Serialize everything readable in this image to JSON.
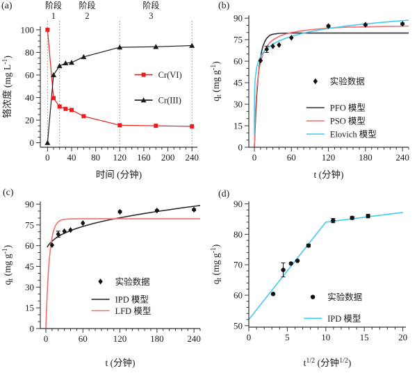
{
  "figure_title": "",
  "colors": {
    "red_bright": "#ed1c1c",
    "salmon": "#f36f6f",
    "cyan": "#41cbf2",
    "black_line": "#2b2b2b",
    "scatter_black": "#111111",
    "dotted_gray": "#808080",
    "text": "#1a1a1a"
  },
  "chart_data": [
    {
      "id": "a",
      "tag": "(a)",
      "type": "line",
      "xlabel_segments": [
        {
          "t": "时间 (分钟)"
        }
      ],
      "ylabel_segments": [
        {
          "t": "铬浓度  (mg L"
        },
        {
          "t": "-1",
          "sup": true
        },
        {
          "t": ")"
        }
      ],
      "xlim": [
        -12,
        249
      ],
      "ylim": [
        -4,
        103
      ],
      "xticks": [
        0,
        40,
        80,
        120,
        160,
        200,
        240
      ],
      "yticks": [
        0,
        20,
        40,
        60,
        80,
        100
      ],
      "x_minor": 10,
      "y_minor": 5,
      "vlines": {
        "x": [
          0,
          20,
          120,
          240
        ]
      },
      "stage_labels": {
        "word": "阶段",
        "items": [
          {
            "x": 10,
            "num": "1"
          },
          {
            "x": 66,
            "num": "2"
          },
          {
            "x": 172,
            "num": "3"
          }
        ]
      },
      "series": [
        {
          "key": "cr-vi",
          "name": "Cr(VI)",
          "kind": "line-marker",
          "marker": "square",
          "color": "#ed1c1c",
          "points": [
            [
              0,
              100
            ],
            [
              10,
              39.5
            ],
            [
              20,
              32
            ],
            [
              30,
              30
            ],
            [
              40,
              29
            ],
            [
              60,
              23.5
            ],
            [
              120,
              15.5
            ],
            [
              180,
              15
            ],
            [
              240,
              14.5
            ]
          ]
        },
        {
          "key": "cr-iii",
          "name": "Cr(III)",
          "kind": "line-marker",
          "marker": "triangle",
          "color": "#1a1a1a",
          "points": [
            [
              0,
              0
            ],
            [
              10,
              60
            ],
            [
              20,
              68
            ],
            [
              30,
              70.5
            ],
            [
              40,
              71
            ],
            [
              60,
              76
            ],
            [
              120,
              84.5
            ],
            [
              180,
              85
            ],
            [
              240,
              86
            ]
          ]
        }
      ],
      "legend": {
        "fx": 0.6,
        "line_len": 26,
        "entries": [
          {
            "fy": 0.4,
            "swatch": "line-marker",
            "marker": "square",
            "color": "#ed1c1c",
            "label": "Cr(VI)"
          },
          {
            "fy": 0.61,
            "swatch": "line-marker",
            "marker": "triangle",
            "color": "#1a1a1a",
            "label": "Cr(III)"
          }
        ]
      }
    },
    {
      "id": "b",
      "tag": "(b)",
      "type": "scatter+line",
      "xlabel_segments": [
        {
          "t": "t (分钟)"
        }
      ],
      "ylabel_segments": [
        {
          "t": "q"
        },
        {
          "t": "t",
          "sub": true
        },
        {
          "t": " (mg g"
        },
        {
          "t": "-1",
          "sup": true
        },
        {
          "t": ")"
        }
      ],
      "xlim": [
        -9,
        250
      ],
      "ylim": [
        0,
        92
      ],
      "xticks": [
        0,
        60,
        120,
        180,
        240
      ],
      "yticks": [
        0,
        15,
        30,
        45,
        60,
        75,
        90
      ],
      "x_minor": 10,
      "y_minor": 5,
      "series": [
        {
          "key": "pfo",
          "name": "PFO 模型",
          "kind": "line",
          "color": "#2b2b2b",
          "points": [
            [
              0,
              0
            ],
            [
              1,
              11.4
            ],
            [
              2,
              21.2
            ],
            [
              3,
              29.6
            ],
            [
              4,
              36.8
            ],
            [
              5,
              42.9
            ],
            [
              6,
              48.2
            ],
            [
              8,
              56.6
            ],
            [
              10,
              62.7
            ],
            [
              12,
              67.2
            ],
            [
              14,
              70.5
            ],
            [
              17,
              73.9
            ],
            [
              20,
              76.0
            ],
            [
              25,
              78.0
            ],
            [
              30,
              78.8
            ],
            [
              40,
              79.4
            ],
            [
              60,
              79.6
            ],
            [
              120,
              79.6
            ],
            [
              250,
              79.6
            ]
          ]
        },
        {
          "key": "pso",
          "name": "PSO 模型",
          "kind": "line",
          "color": "#f36f6f",
          "points": [
            [
              0,
              0
            ],
            [
              1,
              15.6
            ],
            [
              2,
              26.5
            ],
            [
              3,
              34.4
            ],
            [
              4,
              40.5
            ],
            [
              5,
              45.3
            ],
            [
              6,
              49.1
            ],
            [
              8,
              55.0
            ],
            [
              10,
              59.3
            ],
            [
              13,
              63.9
            ],
            [
              16,
              67.1
            ],
            [
              20,
              70.2
            ],
            [
              25,
              72.9
            ],
            [
              30,
              74.8
            ],
            [
              40,
              77.3
            ],
            [
              50,
              78.9
            ],
            [
              60,
              80.0
            ],
            [
              80,
              81.4
            ],
            [
              100,
              82.3
            ],
            [
              120,
              83.1
            ],
            [
              150,
              83.7
            ],
            [
              180,
              83.9
            ],
            [
              210,
              84.2
            ],
            [
              250,
              84.5
            ]
          ]
        },
        {
          "key": "elovich",
          "name": "Elovich 模型",
          "kind": "line",
          "color": "#41cbf2",
          "points": [
            [
              0.01,
              8.6
            ],
            [
              0.05,
              21.3
            ],
            [
              0.1,
              26.8
            ],
            [
              0.2,
              32.3
            ],
            [
              0.4,
              37.8
            ],
            [
              0.7,
              42.2
            ],
            [
              1,
              45
            ],
            [
              1.5,
              48.2
            ],
            [
              2,
              50.5
            ],
            [
              3,
              53.7
            ],
            [
              4,
              56.0
            ],
            [
              6,
              59.2
            ],
            [
              8,
              61.4
            ],
            [
              10,
              63.2
            ],
            [
              13,
              65.3
            ],
            [
              16,
              66.9
            ],
            [
              20,
              68.7
            ],
            [
              25,
              70.4
            ],
            [
              30,
              71.9
            ],
            [
              40,
              74.1
            ],
            [
              50,
              75.9
            ],
            [
              60,
              77.3
            ],
            [
              80,
              79.6
            ],
            [
              100,
              81.4
            ],
            [
              120,
              82.8
            ],
            [
              150,
              84.6
            ],
            [
              180,
              86.0
            ],
            [
              210,
              87.2
            ],
            [
              250,
              88.6
            ]
          ]
        },
        {
          "key": "exp-data",
          "name": "实验数据",
          "kind": "scatter",
          "marker": "diamond",
          "color": "#111111",
          "points": [
            [
              10,
              60.4
            ],
            [
              20,
              68.3
            ],
            [
              30,
              70.4
            ],
            [
              40,
              71.3
            ],
            [
              60,
              76.3
            ],
            [
              120,
              84.5
            ],
            [
              180,
              85.4
            ],
            [
              240,
              86.0
            ]
          ],
          "err": [
            0,
            2.2,
            0,
            0,
            0,
            0.7,
            0.6,
            0.7
          ]
        }
      ],
      "legend": {
        "fx": 0.36,
        "line_len": 26,
        "entries": [
          {
            "fy": 0.5,
            "swatch": "marker",
            "marker": "diamond",
            "color": "#111111",
            "label": "实验数据"
          },
          {
            "fy": 0.7,
            "swatch": "line",
            "color": "#2b2b2b",
            "label": "PFO 模型"
          },
          {
            "fy": 0.8,
            "swatch": "line",
            "color": "#f36f6f",
            "label": "PSO 模型"
          },
          {
            "fy": 0.9,
            "swatch": "line",
            "color": "#41cbf2",
            "label": "Elovich 模型"
          }
        ]
      }
    },
    {
      "id": "c",
      "tag": "(c)",
      "type": "scatter+line",
      "xlabel_segments": [
        {
          "t": "t (分钟)"
        }
      ],
      "ylabel_segments": [
        {
          "t": "q"
        },
        {
          "t": "t",
          "sub": true
        },
        {
          "t": " (mg g"
        },
        {
          "t": "-1",
          "sup": true
        },
        {
          "t": ")"
        }
      ],
      "xlim": [
        -9,
        250
      ],
      "ylim": [
        0,
        92
      ],
      "xticks": [
        0,
        60,
        120,
        180,
        240
      ],
      "yticks": [
        0,
        15,
        30,
        45,
        60,
        75,
        90
      ],
      "x_minor": 10,
      "y_minor": 5,
      "series": [
        {
          "key": "ipd",
          "name": "IPD 模型",
          "kind": "line",
          "color": "#2b2b2b",
          "points": [
            [
              2,
              58.8
            ],
            [
              4,
              60.3
            ],
            [
              6,
              61.4
            ],
            [
              8,
              62.4
            ],
            [
              10,
              63.3
            ],
            [
              15,
              65.1
            ],
            [
              20,
              66.6
            ],
            [
              25,
              67.9
            ],
            [
              30,
              69.0
            ],
            [
              40,
              70.9
            ],
            [
              50,
              72.5
            ],
            [
              60,
              73.9
            ],
            [
              75,
              75.8
            ],
            [
              90,
              77.4
            ],
            [
              105,
              78.9
            ],
            [
              120,
              80.2
            ],
            [
              140,
              81.8
            ],
            [
              160,
              83.3
            ],
            [
              180,
              84.7
            ],
            [
              200,
              86.0
            ],
            [
              220,
              87.3
            ],
            [
              240,
              88.5
            ],
            [
              250,
              89.1
            ]
          ]
        },
        {
          "key": "lfd",
          "name": "LFD 模型",
          "kind": "line",
          "color": "#f36f6f",
          "points": [
            [
              0,
              0
            ],
            [
              1,
              12.9
            ],
            [
              2,
              23.7
            ],
            [
              3,
              32.8
            ],
            [
              4,
              40.3
            ],
            [
              5,
              46.7
            ],
            [
              6,
              52.0
            ],
            [
              8,
              60.2
            ],
            [
              10,
              66.0
            ],
            [
              12,
              70.0
            ],
            [
              15,
              74.0
            ],
            [
              18,
              76.2
            ],
            [
              22,
              77.9
            ],
            [
              26,
              78.7
            ],
            [
              30,
              79.1
            ],
            [
              40,
              79.4
            ],
            [
              60,
              79.5
            ],
            [
              250,
              79.5
            ]
          ]
        },
        {
          "key": "exp-data",
          "name": "实验数据",
          "kind": "scatter",
          "marker": "diamond",
          "color": "#111111",
          "points": [
            [
              10,
              60.4
            ],
            [
              20,
              68.3
            ],
            [
              30,
              70.4
            ],
            [
              40,
              71.3
            ],
            [
              60,
              76.3
            ],
            [
              120,
              84.5
            ],
            [
              180,
              85.4
            ],
            [
              240,
              86.0
            ]
          ],
          "err": [
            0,
            2.2,
            0,
            0,
            0,
            0.7,
            0.6,
            0.7
          ]
        }
      ],
      "legend": {
        "fx": 0.32,
        "line_len": 26,
        "entries": [
          {
            "fy": 0.63,
            "swatch": "marker",
            "marker": "diamond",
            "color": "#111111",
            "label": "实验数据"
          },
          {
            "fy": 0.77,
            "swatch": "line",
            "color": "#2b2b2b",
            "label": "IPD 模型"
          },
          {
            "fy": 0.86,
            "swatch": "line",
            "color": "#f36f6f",
            "label": "LFD 模型"
          }
        ]
      }
    },
    {
      "id": "d",
      "tag": "(d)",
      "type": "scatter+line",
      "xlabel_segments": [
        {
          "t": "t"
        },
        {
          "t": "1/2",
          "sup": true
        },
        {
          "t": " (分钟"
        },
        {
          "t": "1/2",
          "sup": true
        },
        {
          "t": ")"
        }
      ],
      "ylabel_segments": [
        {
          "t": "q"
        },
        {
          "t": "t",
          "sub": true
        },
        {
          "t": " (mg g"
        },
        {
          "t": "-1",
          "sup": true
        },
        {
          "t": ")"
        }
      ],
      "xlim": [
        0,
        20.4
      ],
      "ylim": [
        49.5,
        90.8
      ],
      "xticks": [
        0,
        5,
        10,
        15,
        20
      ],
      "yticks": [
        50,
        60,
        70,
        80,
        90
      ],
      "x_minor": 1,
      "y_minor": 2,
      "series": [
        {
          "key": "ipd-line",
          "name": "IPD 模型",
          "kind": "line",
          "color": "#41cbf2",
          "points": [
            [
              0,
              52
            ],
            [
              10,
              84
            ],
            [
              20,
              87.2
            ]
          ]
        },
        {
          "key": "exp-data",
          "name": "实验数据",
          "kind": "scatter",
          "marker": "circle",
          "color": "#111111",
          "points": [
            [
              3.16,
              60.4
            ],
            [
              4.47,
              68.3
            ],
            [
              5.48,
              70.4
            ],
            [
              6.32,
              71.3
            ],
            [
              7.75,
              76.3
            ],
            [
              10.95,
              84.5
            ],
            [
              13.42,
              85.4
            ],
            [
              15.49,
              86.0
            ]
          ],
          "err": [
            0,
            2.3,
            0,
            0,
            0.5,
            0.7,
            0.5,
            0.6
          ]
        }
      ],
      "legend": {
        "fx": 0.35,
        "line_len": 26,
        "entries": [
          {
            "fy": 0.76,
            "swatch": "marker",
            "marker": "circle",
            "color": "#111111",
            "label": "实验数据"
          },
          {
            "fy": 0.93,
            "swatch": "line",
            "color": "#41cbf2",
            "label": "IPD 模型"
          }
        ]
      }
    }
  ]
}
